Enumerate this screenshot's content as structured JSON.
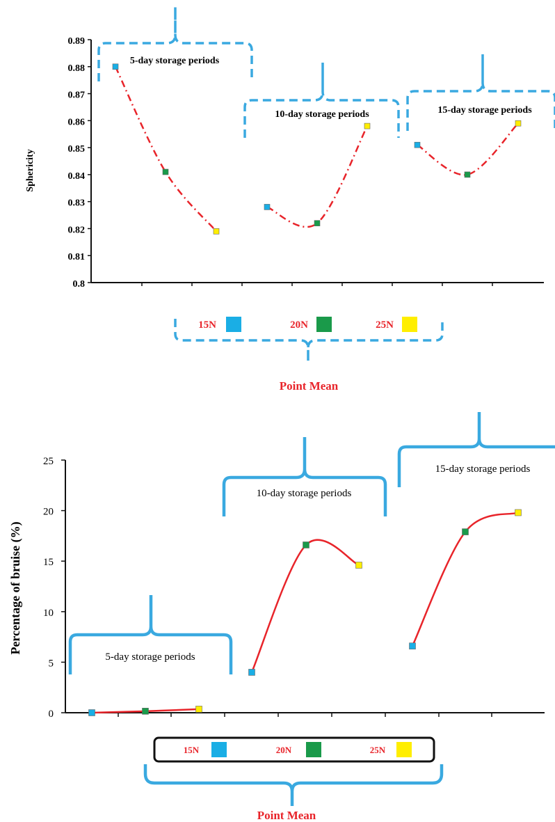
{
  "chart_data": [
    {
      "type": "line",
      "title": "",
      "xlabel": "Point Mean",
      "ylabel": "Sphericity",
      "ylim": [
        0.8,
        0.89
      ],
      "yticks": [
        "0.89",
        "0.88",
        "0.87",
        "0.86",
        "0.85",
        "0.84",
        "0.83",
        "0.82",
        "0.81",
        "0.8"
      ],
      "line_style": "dash-dot",
      "line_color": "#e8242a",
      "grid": false,
      "groups": [
        {
          "label": "5-day storage periods",
          "points": [
            {
              "load": "15N",
              "value": 0.88
            },
            {
              "load": "20N",
              "value": 0.841
            },
            {
              "load": "25N",
              "value": 0.819
            }
          ]
        },
        {
          "label": "10-day storage periods",
          "points": [
            {
              "load": "15N",
              "value": 0.828
            },
            {
              "load": "20N",
              "value": 0.822
            },
            {
              "load": "25N",
              "value": 0.858
            }
          ]
        },
        {
          "label": "15-day storage periods",
          "points": [
            {
              "load": "15N",
              "value": 0.851
            },
            {
              "load": "20N",
              "value": 0.84
            },
            {
              "load": "25N",
              "value": 0.859
            }
          ]
        }
      ],
      "legend": {
        "placement": "bottom",
        "items": [
          {
            "label": "15N",
            "color": "#1aaee5"
          },
          {
            "label": "20N",
            "color": "#1a9a4a"
          },
          {
            "label": "25N",
            "color": "#ffee00"
          }
        ]
      }
    },
    {
      "type": "line",
      "title": "",
      "xlabel": "Point Mean",
      "ylabel": "Percentage of bruise (%)",
      "ylim": [
        0,
        25
      ],
      "yticks": [
        "25",
        "20",
        "15",
        "10",
        "5",
        "0"
      ],
      "line_style": "smooth",
      "line_color": "#e8242a",
      "grid": false,
      "groups": [
        {
          "label": "5-day storage periods",
          "points": [
            {
              "load": "15N",
              "value": 0.0
            },
            {
              "load": "20N",
              "value": 0.15
            },
            {
              "load": "25N",
              "value": 0.35
            }
          ]
        },
        {
          "label": "10-day storage periods",
          "points": [
            {
              "load": "15N",
              "value": 4.0
            },
            {
              "load": "20N",
              "value": 16.6
            },
            {
              "load": "25N",
              "value": 14.6
            }
          ]
        },
        {
          "label": "15-day storage periods",
          "points": [
            {
              "load": "15N",
              "value": 6.6
            },
            {
              "load": "20N",
              "value": 17.9
            },
            {
              "load": "25N",
              "value": 19.8
            }
          ]
        }
      ],
      "legend": {
        "placement": "bottom",
        "items": [
          {
            "label": "15N",
            "color": "#1aaee5"
          },
          {
            "label": "20N",
            "color": "#1a9a4a"
          },
          {
            "label": "25N",
            "color": "#ffee00"
          }
        ]
      }
    }
  ]
}
